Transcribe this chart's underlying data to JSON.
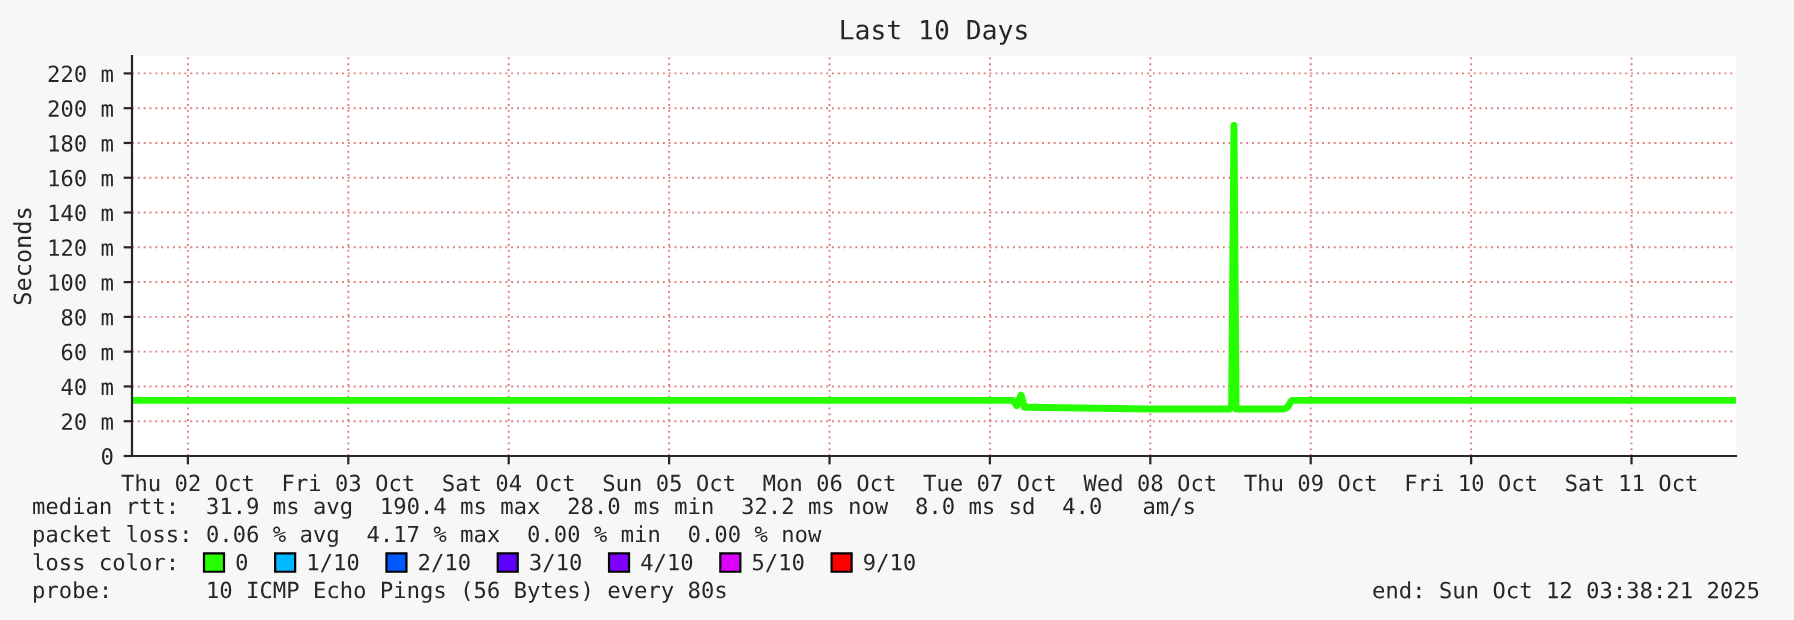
{
  "chart_data": {
    "type": "line",
    "title": "Last 10 Days",
    "ylabel": "Seconds",
    "x": [
      "2025-10-02T03:38",
      "2025-10-07T15:30",
      "2025-10-07T16:00",
      "2025-10-07T16:40",
      "2025-10-07T17:10",
      "2025-10-07T17:40",
      "2025-10-08T12:00",
      "2025-10-08T23:50",
      "2025-10-09T00:10",
      "2025-10-09T00:31",
      "2025-10-09T00:50",
      "2025-10-09T08:00",
      "2025-10-09T08:30",
      "2025-10-09T09:10",
      "2025-10-12T03:38"
    ],
    "series": [
      {
        "name": "0",
        "color": "#26ff00",
        "values": [
          32,
          32,
          29,
          35,
          28,
          28,
          27,
          27,
          29,
          190,
          27,
          27,
          28,
          32,
          32
        ]
      },
      {
        "name": "1/10",
        "color": "#00b8ff",
        "values": [
          null,
          null,
          null,
          null,
          null,
          null,
          null,
          null,
          null,
          null,
          null,
          null,
          null,
          null,
          null
        ]
      },
      {
        "name": "2/10",
        "color": "#0059ff",
        "values": [
          null,
          null,
          null,
          null,
          null,
          null,
          null,
          null,
          null,
          null,
          null,
          null,
          null,
          null,
          null
        ]
      },
      {
        "name": "3/10",
        "color": "#5e00ff",
        "values": [
          null,
          null,
          null,
          null,
          null,
          null,
          null,
          null,
          null,
          null,
          null,
          null,
          null,
          null,
          null
        ]
      },
      {
        "name": "4/10",
        "color": "#7e00ff",
        "values": [
          null,
          null,
          null,
          null,
          null,
          null,
          null,
          null,
          null,
          null,
          null,
          null,
          null,
          null,
          null
        ]
      },
      {
        "name": "5/10",
        "color": "#dd00ff",
        "values": [
          null,
          null,
          null,
          null,
          null,
          null,
          null,
          null,
          null,
          null,
          null,
          null,
          null,
          null,
          null
        ]
      },
      {
        "name": "9/10",
        "color": "#ff0000",
        "values": [
          null,
          null,
          null,
          null,
          null,
          null,
          null,
          null,
          null,
          null,
          null,
          null,
          null,
          null,
          null
        ]
      }
    ],
    "legend_title": "loss color:",
    "legend": "bottom",
    "xlim": [
      "2025-10-02T03:38",
      "2025-10-12T03:38"
    ],
    "xticks": [
      {
        "value": "2025-10-02T12:00",
        "label": "Thu 02 Oct"
      },
      {
        "value": "2025-10-03T12:00",
        "label": "Fri 03 Oct"
      },
      {
        "value": "2025-10-04T12:00",
        "label": "Sat 04 Oct"
      },
      {
        "value": "2025-10-05T12:00",
        "label": "Sun 05 Oct"
      },
      {
        "value": "2025-10-06T12:00",
        "label": "Mon 06 Oct"
      },
      {
        "value": "2025-10-07T12:00",
        "label": "Tue 07 Oct"
      },
      {
        "value": "2025-10-08T12:00",
        "label": "Wed 08 Oct"
      },
      {
        "value": "2025-10-09T12:00",
        "label": "Thu 09 Oct"
      },
      {
        "value": "2025-10-10T12:00",
        "label": "Fri 10 Oct"
      },
      {
        "value": "2025-10-11T12:00",
        "label": "Sat 11 Oct"
      }
    ],
    "ylim": [
      0,
      230
    ],
    "yticks": [
      {
        "value": 0,
        "label": "0"
      },
      {
        "value": 20,
        "label": "20 m"
      },
      {
        "value": 40,
        "label": "40 m"
      },
      {
        "value": 60,
        "label": "60 m"
      },
      {
        "value": 80,
        "label": "80 m"
      },
      {
        "value": 100,
        "label": "100 m"
      },
      {
        "value": 120,
        "label": "120 m"
      },
      {
        "value": 140,
        "label": "140 m"
      },
      {
        "value": 160,
        "label": "160 m"
      },
      {
        "value": 180,
        "label": "180 m"
      },
      {
        "value": 200,
        "label": "200 m"
      },
      {
        "value": 220,
        "label": "220 m"
      }
    ],
    "grid": true,
    "marker": "none",
    "line_style": "solid",
    "annotations": [
      "median rtt:  31.9 ms avg  190.4 ms max  28.0 ms min  32.2 ms now  8.0 ms sd  4.0   am/s",
      "packet loss: 0.06 % avg  4.17 % max  0.00 % min  0.00 % now",
      "probe:       10 ICMP Echo Pings (56 Bytes) every 80s",
      "end: Sun Oct 12 03:38:21 2025"
    ]
  }
}
